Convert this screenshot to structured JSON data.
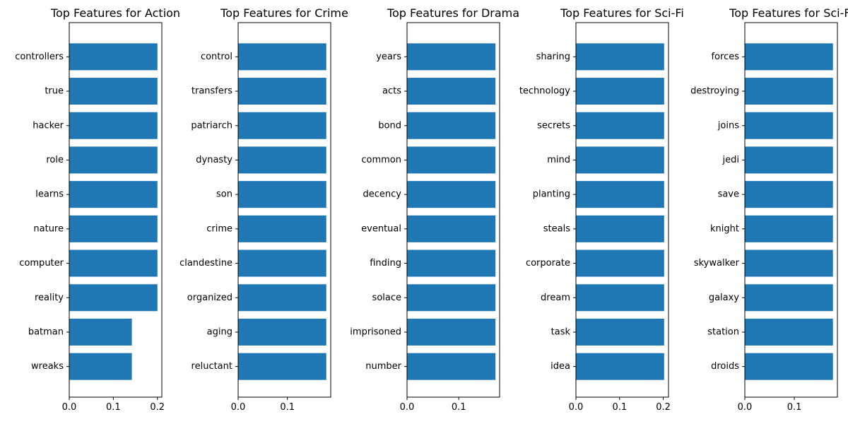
{
  "chart_data": [
    {
      "type": "bar",
      "orientation": "horizontal",
      "title": "Top Features for Action",
      "categories": [
        "controllers",
        "true",
        "hacker",
        "role",
        "learns",
        "nature",
        "computer",
        "reality",
        "batman",
        "wreaks"
      ],
      "values": [
        0.2,
        0.2,
        0.2,
        0.2,
        0.2,
        0.2,
        0.2,
        0.2,
        0.142,
        0.142
      ],
      "xlim": [
        0,
        0.21
      ],
      "xticks": [
        "0.0",
        "0.1",
        "0.2"
      ],
      "color": "#1f77b4"
    },
    {
      "type": "bar",
      "orientation": "horizontal",
      "title": "Top Features for Crime",
      "categories": [
        "control",
        "transfers",
        "patriarch",
        "dynasty",
        "son",
        "crime",
        "clandestine",
        "organized",
        "aging",
        "reluctant"
      ],
      "values": [
        0.179,
        0.179,
        0.179,
        0.179,
        0.179,
        0.179,
        0.179,
        0.179,
        0.179,
        0.179
      ],
      "xlim": [
        0,
        0.188
      ],
      "xticks": [
        "0.0",
        "0.1"
      ],
      "color": "#1f77b4"
    },
    {
      "type": "bar",
      "orientation": "horizontal",
      "title": "Top Features for Drama",
      "categories": [
        "years",
        "acts",
        "bond",
        "common",
        "decency",
        "eventual",
        "finding",
        "solace",
        "imprisoned",
        "number"
      ],
      "values": [
        0.171,
        0.171,
        0.171,
        0.171,
        0.171,
        0.171,
        0.171,
        0.171,
        0.171,
        0.171
      ],
      "xlim": [
        0,
        0.179
      ],
      "xticks": [
        "0.0",
        "0.1"
      ],
      "color": "#1f77b4"
    },
    {
      "type": "bar",
      "orientation": "horizontal",
      "title": "Top Features for Sci-Fi",
      "categories": [
        "sharing",
        "technology",
        "secrets",
        "mind",
        "planting",
        "steals",
        "corporate",
        "dream",
        "task",
        "idea"
      ],
      "values": [
        0.202,
        0.202,
        0.202,
        0.202,
        0.202,
        0.202,
        0.202,
        0.202,
        0.202,
        0.202
      ],
      "xlim": [
        0,
        0.212
      ],
      "xticks": [
        "0.0",
        "0.1",
        "0.2"
      ],
      "color": "#1f77b4"
    },
    {
      "type": "bar",
      "orientation": "horizontal",
      "title": "Top Features for Sci-Fi",
      "categories": [
        "forces",
        "destroying",
        "joins",
        "jedi",
        "save",
        "knight",
        "skywalker",
        "galaxy",
        "station",
        "droids"
      ],
      "values": [
        0.178,
        0.178,
        0.178,
        0.178,
        0.178,
        0.178,
        0.178,
        0.178,
        0.178,
        0.178
      ],
      "xlim": [
        0,
        0.187
      ],
      "xticks": [
        "0.0",
        "0.1"
      ],
      "color": "#1f77b4"
    }
  ]
}
